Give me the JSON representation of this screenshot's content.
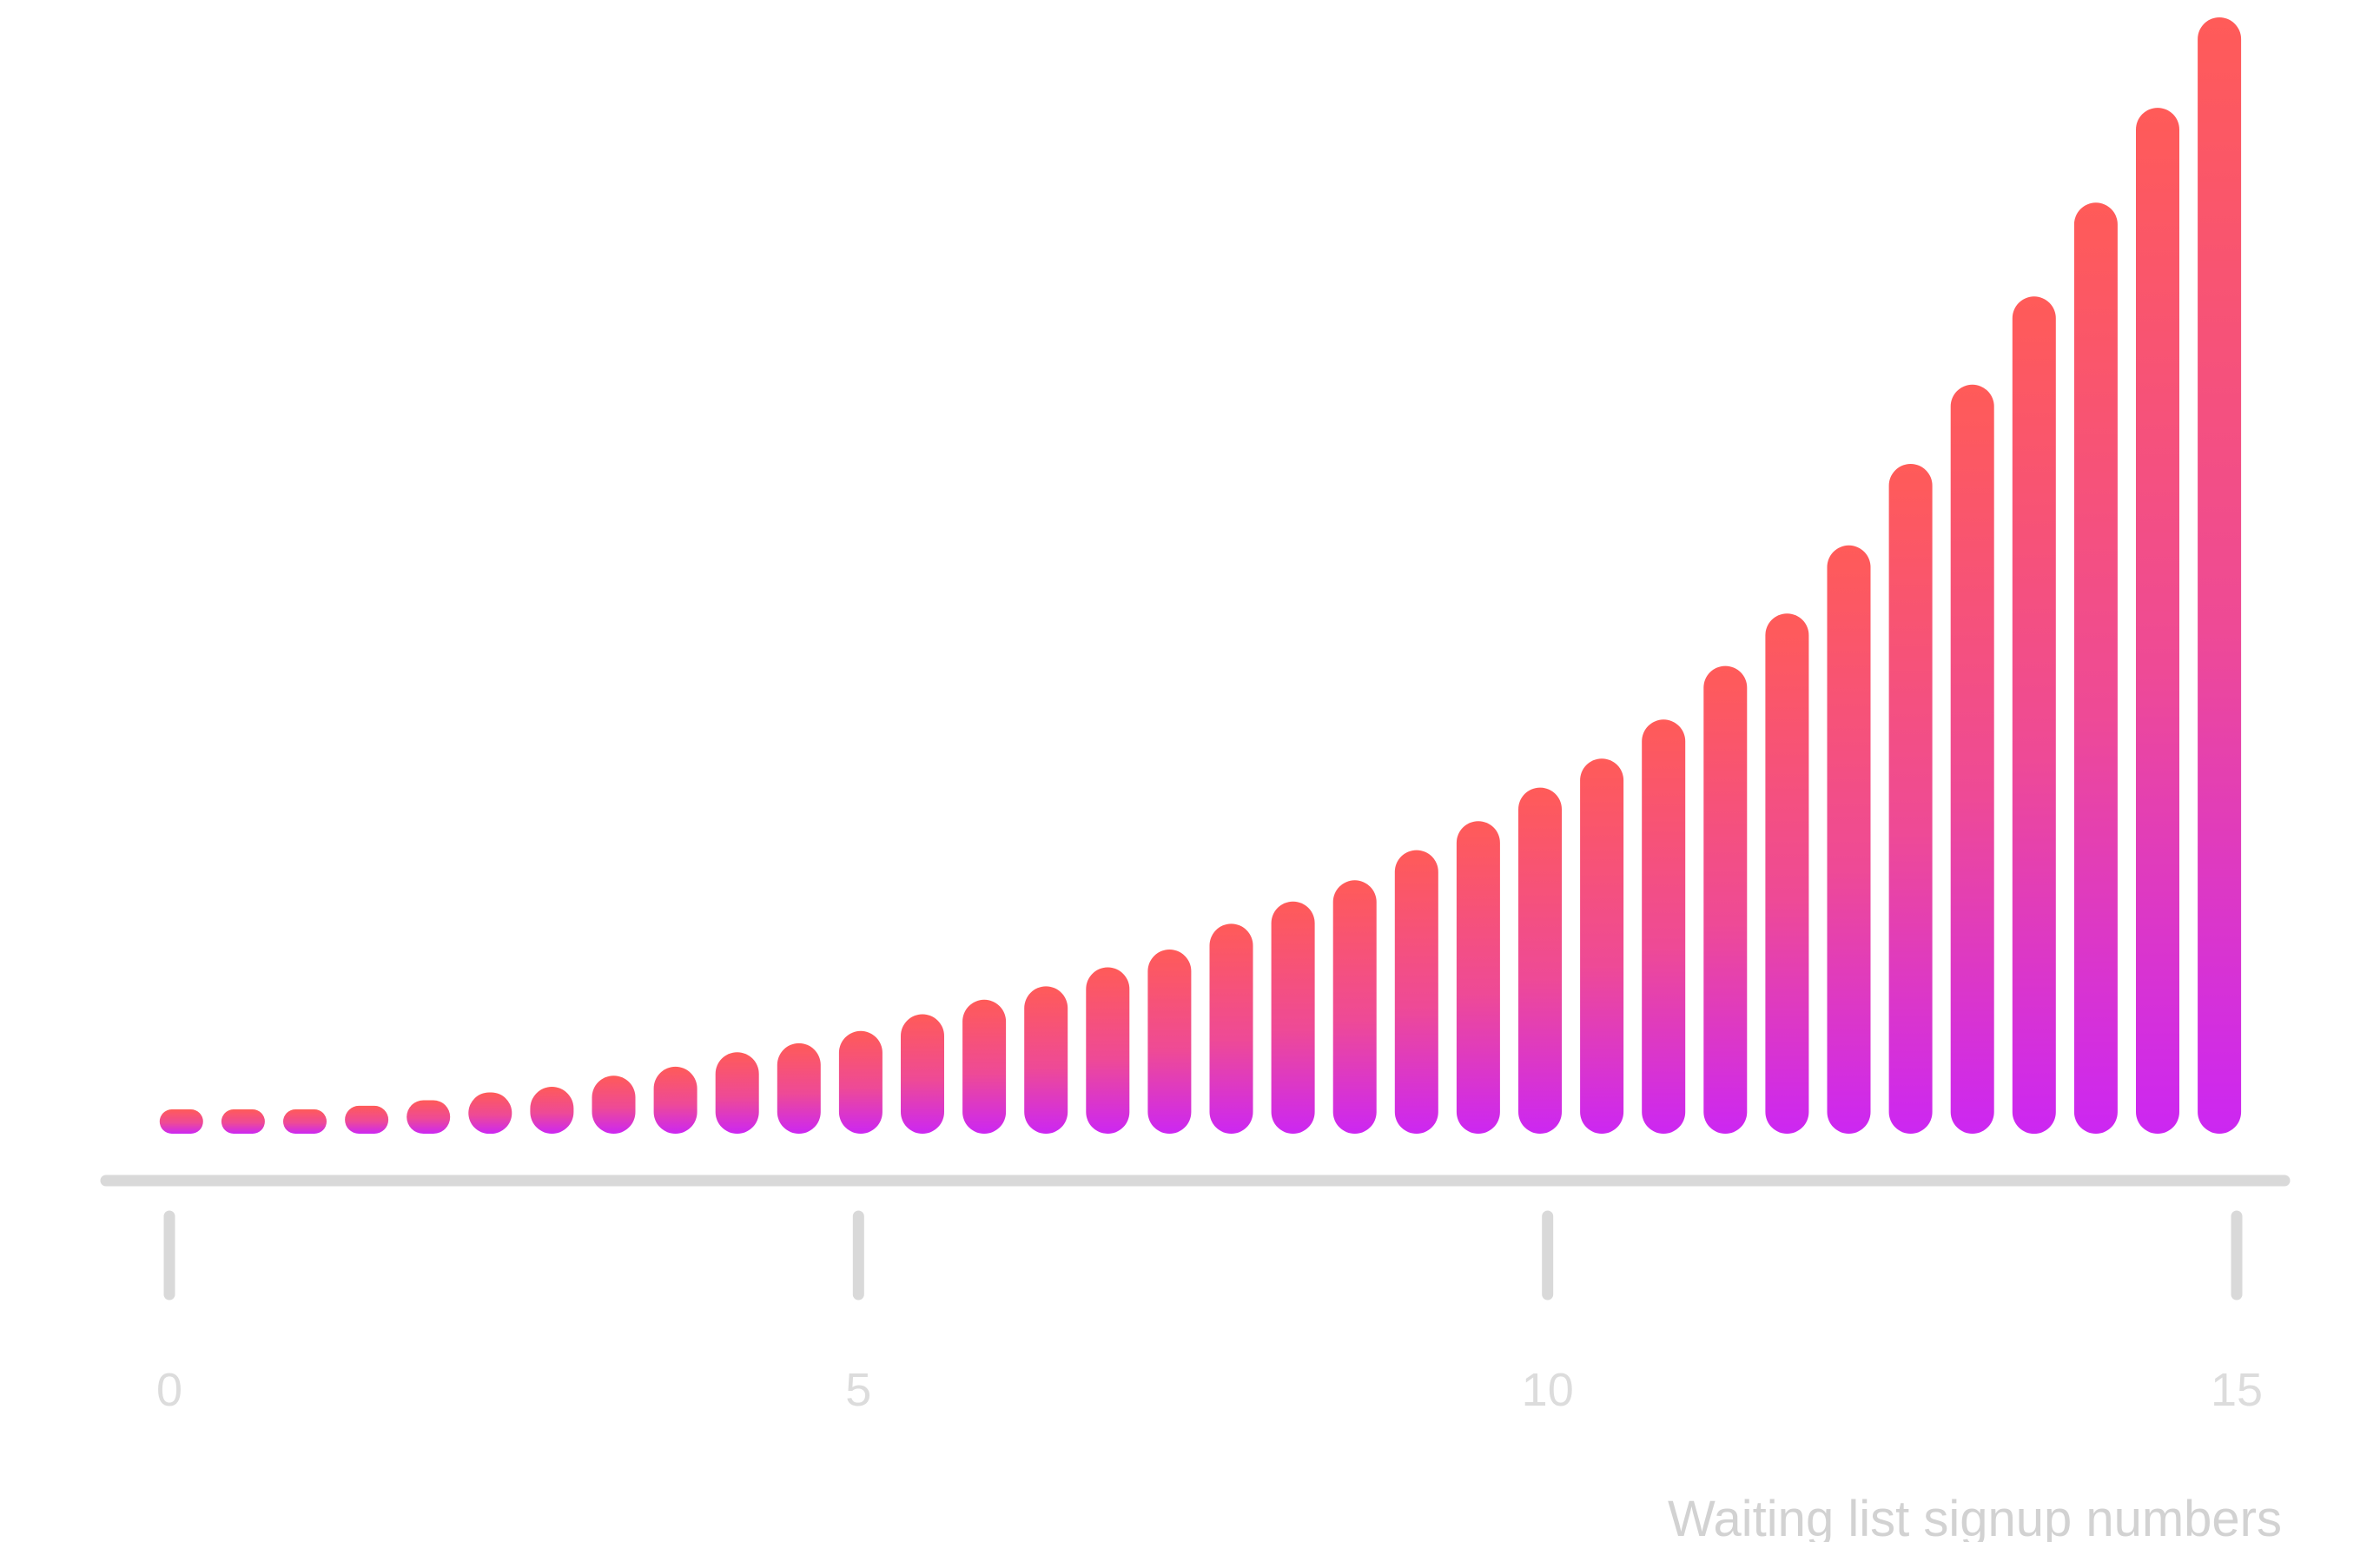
{
  "chart_data": {
    "type": "bar",
    "xlabel": "Waiting list signup numbers",
    "ylabel": "",
    "xlim": [
      0,
      15
    ],
    "ylim": [
      0,
      100
    ],
    "x_ticks": [
      {
        "value": 0,
        "label": "0"
      },
      {
        "value": 5,
        "label": "5"
      },
      {
        "value": 10,
        "label": "10"
      },
      {
        "value": 15,
        "label": "15"
      }
    ],
    "x": [
      0.1,
      0.55,
      1.0,
      1.45,
      1.9,
      2.35,
      2.8,
      3.25,
      3.7,
      4.15,
      4.6,
      5.05,
      5.5,
      5.95,
      6.4,
      6.85,
      7.3,
      7.75,
      8.2,
      8.65,
      9.1,
      9.55,
      10.0,
      10.45,
      10.9,
      11.35,
      11.8,
      12.25,
      12.7,
      13.15,
      13.6,
      14.05,
      14.5,
      14.95
    ],
    "values": [
      0.5,
      1.2,
      1.8,
      2.5,
      3.0,
      3.7,
      4.2,
      5.2,
      6.0,
      7.3,
      8.1,
      9.2,
      10.7,
      12.0,
      13.2,
      14.9,
      16.5,
      18.8,
      20.8,
      22.7,
      25.4,
      28.0,
      31.0,
      33.6,
      37.1,
      41.9,
      46.6,
      52.7,
      60.0,
      67.1,
      75.0,
      83.4,
      91.9,
      100.0
    ],
    "grid": false,
    "legend": "none",
    "colors": {
      "bar_top": "#ff5b58",
      "bar_bottom": "#cc27f2",
      "axis": "#d9d9d9",
      "tick_label": "#dcdcdc",
      "axis_title": "#d2d2d2"
    }
  }
}
